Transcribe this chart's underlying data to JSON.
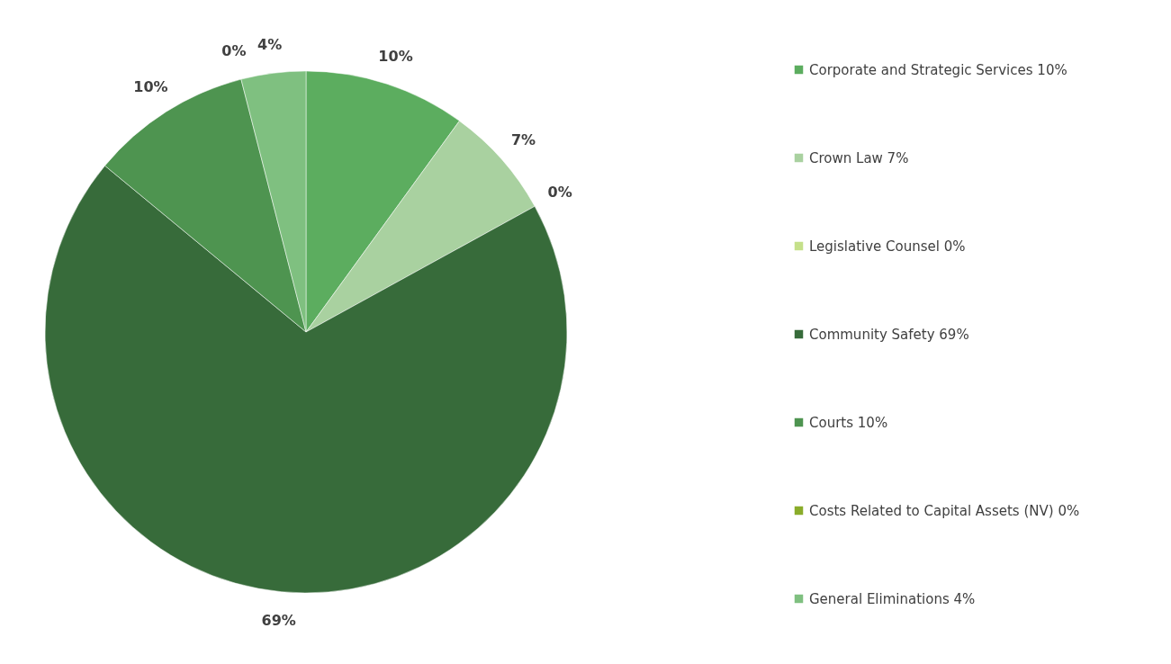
{
  "chart_data": {
    "type": "pie",
    "categories": [
      "Corporate and Strategic Services",
      "Crown Law",
      "Legislative Counsel",
      "Community Safety",
      "Courts",
      "Costs Related to Capital Assets (NV)",
      "General Eliminations"
    ],
    "values": [
      10,
      7,
      0,
      69,
      10,
      0,
      4
    ],
    "value_labels": [
      "10%",
      "7%",
      "0%",
      "69%",
      "10%",
      "0%",
      "4%"
    ],
    "colors": [
      "#5cad5f",
      "#a9d1a0",
      "#c5e08a",
      "#376b3a",
      "#4e9450",
      "#8aac2a",
      "#7fc080"
    ],
    "legend": "right"
  }
}
